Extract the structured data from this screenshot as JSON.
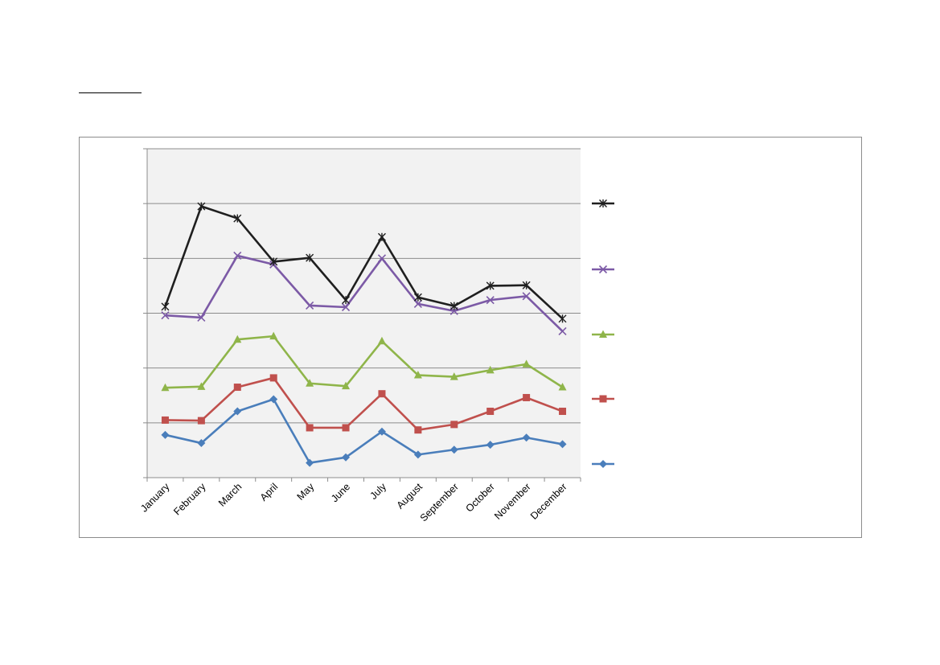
{
  "chart_data": {
    "type": "line",
    "categories": [
      "January",
      "February",
      "March",
      "April",
      "May",
      "June",
      "July",
      "August",
      "September",
      "October",
      "November",
      "December"
    ],
    "ylim": [
      0,
      6
    ],
    "grid": true,
    "legend_position": "right",
    "series": [
      {
        "color": "#1f1f1f",
        "marker": "star",
        "values": [
          3.12,
          4.95,
          4.73,
          3.94,
          4.01,
          3.24,
          4.39,
          3.29,
          3.13,
          3.5,
          3.51,
          2.9
        ]
      },
      {
        "color": "#7c5aa6",
        "marker": "x",
        "values": [
          2.96,
          2.92,
          4.05,
          3.89,
          3.14,
          3.11,
          4.0,
          3.17,
          3.04,
          3.24,
          3.31,
          2.67
        ]
      },
      {
        "color": "#8fb54a",
        "marker": "triangle",
        "values": [
          1.64,
          1.66,
          2.52,
          2.58,
          1.72,
          1.67,
          2.49,
          1.87,
          1.84,
          1.96,
          2.07,
          1.65
        ]
      },
      {
        "color": "#c0504d",
        "marker": "square",
        "values": [
          1.05,
          1.04,
          1.65,
          1.82,
          0.91,
          0.91,
          1.53,
          0.87,
          0.97,
          1.21,
          1.46,
          1.21
        ]
      },
      {
        "color": "#4a7ebb",
        "marker": "diamond",
        "values": [
          0.78,
          0.63,
          1.21,
          1.43,
          0.27,
          0.37,
          0.84,
          0.42,
          0.51,
          0.6,
          0.73,
          0.61
        ]
      }
    ]
  }
}
